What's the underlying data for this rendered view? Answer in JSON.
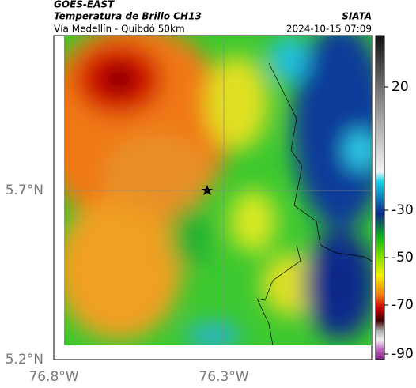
{
  "header": {
    "source": "GOES-EAST",
    "title": "Temperatura de Brillo CH13",
    "org": "SIATA",
    "subtitle": "Vía Medellín - Quibdó 50km",
    "datetime": "2024-10-15 07:09"
  },
  "axes": {
    "lat_labels": [
      "5.7°N",
      "5.2°N"
    ],
    "lon_labels": [
      "76.8°W",
      "76.3°W"
    ]
  },
  "colorbar": {
    "ticks": [
      "20",
      "-30",
      "-50",
      "-70",
      "-90"
    ]
  }
}
